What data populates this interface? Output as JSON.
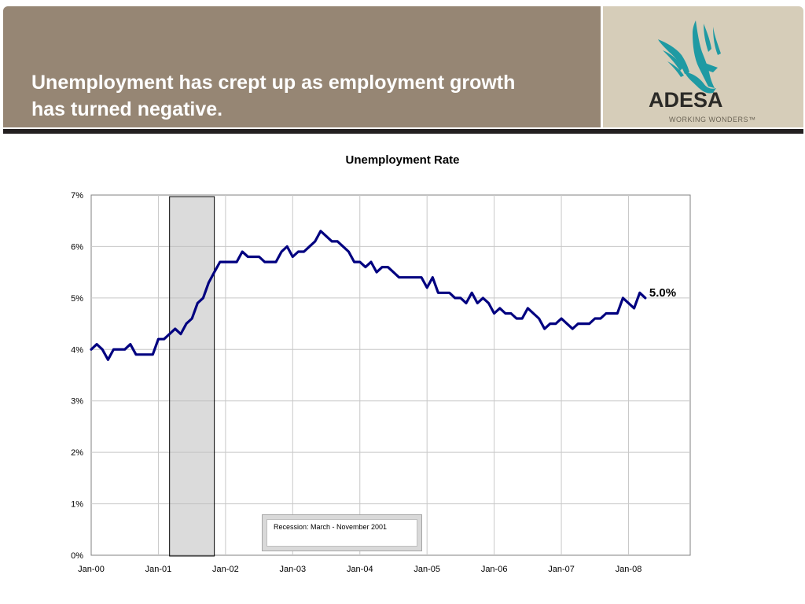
{
  "slide": {
    "title": "Unemployment has crept up as employment growth has turned negative.",
    "logo_text": "ADESA",
    "logo_tagline": "WORKING WONDERS™",
    "colors": {
      "header": "#968674",
      "logo_panel": "#d6cdb9",
      "logo_bird": "#1f9aa3",
      "rule": "#231f20"
    }
  },
  "chart_data": {
    "type": "line",
    "title": "Unemployment Rate",
    "xlabel": "",
    "ylabel": "",
    "x_tick_labels": [
      "Jan-00",
      "Jan-01",
      "Jan-02",
      "Jan-03",
      "Jan-04",
      "Jan-05",
      "Jan-06",
      "Jan-07",
      "Jan-08"
    ],
    "y_tick_labels": [
      "0%",
      "1%",
      "2%",
      "3%",
      "4%",
      "5%",
      "6%",
      "7%"
    ],
    "ylim": [
      0,
      7
    ],
    "grid": true,
    "start_month": "Jan-00",
    "series": [
      {
        "name": "",
        "color": "#000080",
        "values": [
          4.0,
          4.1,
          4.0,
          3.8,
          4.0,
          4.0,
          4.0,
          4.1,
          3.9,
          3.9,
          3.9,
          3.9,
          4.2,
          4.2,
          4.3,
          4.4,
          4.3,
          4.5,
          4.6,
          4.9,
          5.0,
          5.3,
          5.5,
          5.7,
          5.7,
          5.7,
          5.7,
          5.9,
          5.8,
          5.8,
          5.8,
          5.7,
          5.7,
          5.7,
          5.9,
          6.0,
          5.8,
          5.9,
          5.9,
          6.0,
          6.1,
          6.3,
          6.2,
          6.1,
          6.1,
          6.0,
          5.9,
          5.7,
          5.7,
          5.6,
          5.7,
          5.5,
          5.6,
          5.6,
          5.5,
          5.4,
          5.4,
          5.4,
          5.4,
          5.4,
          5.2,
          5.4,
          5.1,
          5.1,
          5.1,
          5.0,
          5.0,
          4.9,
          5.1,
          4.9,
          5.0,
          4.9,
          4.7,
          4.8,
          4.7,
          4.7,
          4.6,
          4.6,
          4.8,
          4.7,
          4.6,
          4.4,
          4.5,
          4.5,
          4.6,
          4.5,
          4.4,
          4.5,
          4.5,
          4.5,
          4.6,
          4.6,
          4.7,
          4.7,
          4.7,
          5.0,
          4.9,
          4.8,
          5.1,
          5.0
        ]
      }
    ],
    "end_label": "5.0%",
    "recession": {
      "label": "Recession: March - November 2001",
      "start_month": "Mar-01",
      "end_month": "Nov-01"
    }
  }
}
